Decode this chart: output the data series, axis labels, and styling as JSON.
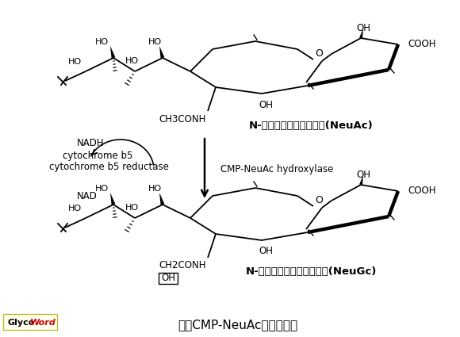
{
  "bg_color": "#ffffff",
  "title_text": "図　CMP-NeuAc水酸化反応",
  "neuac_label": "N-アセチルノイラミン酸(NeuAc)",
  "neugc_label": "N-グリコリルノイラミン酸(NeuGc)",
  "arrow_label_right": "CMP-NeuAc hydroxylase",
  "label_nadh": "NADH",
  "label_cyto_b5": "cytochrome b5",
  "label_cyto_b5r": "cytochrome b5 reductase",
  "label_nad": "NAD",
  "neuac_group": "CH3CONH",
  "neugc_group": "CH2CONH",
  "oh_label": "OH",
  "cooh_label": "COOH",
  "o_label": "O",
  "ho_label": "HO",
  "fig_width": 5.8,
  "fig_height": 4.25,
  "dpi": 100
}
